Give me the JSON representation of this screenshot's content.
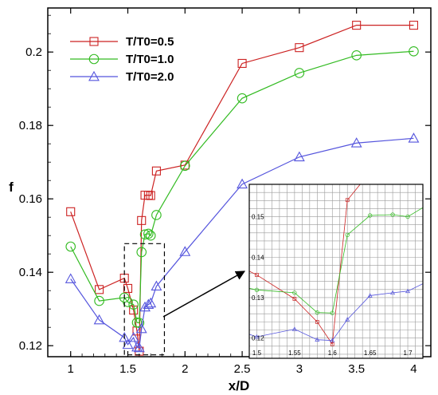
{
  "chart_data": {
    "type": "line",
    "xlabel": "x/D",
    "ylabel": "f",
    "xlim": [
      0.8,
      4.15
    ],
    "ylim": [
      0.117,
      0.212
    ],
    "xticks": [
      "1",
      "1.5",
      "2",
      "2.5",
      "3",
      "3.5",
      "4"
    ],
    "yticks": [
      "0.12",
      "0.14",
      "0.16",
      "0.18",
      "0.2"
    ],
    "legend_position": "top-left",
    "series": [
      {
        "name": "T/T0=0.5",
        "color": "#cc2222",
        "marker": "square",
        "x": [
          1.0,
          1.25,
          1.47,
          1.5,
          1.55,
          1.58,
          1.6,
          1.62,
          1.65,
          1.68,
          1.7,
          1.75,
          2.0,
          2.5,
          3.0,
          3.5,
          4.0
        ],
        "y": [
          0.1565,
          0.1353,
          0.1384,
          0.1356,
          0.1297,
          0.124,
          0.1185,
          0.1541,
          0.161,
          0.161,
          0.1609,
          0.1676,
          0.1692,
          0.1969,
          0.2012,
          0.2073,
          0.2073
        ]
      },
      {
        "name": "T/T0=1.0",
        "color": "#33bb22",
        "marker": "circle",
        "x": [
          1.0,
          1.25,
          1.47,
          1.5,
          1.55,
          1.58,
          1.6,
          1.62,
          1.65,
          1.68,
          1.7,
          1.75,
          2.0,
          2.5,
          3.0,
          3.5,
          4.0
        ],
        "y": [
          0.147,
          0.1322,
          0.1331,
          0.1319,
          0.1312,
          0.1263,
          0.1262,
          0.1455,
          0.1503,
          0.1505,
          0.15,
          0.1556,
          0.169,
          0.1874,
          0.1943,
          0.1991,
          0.2002
        ]
      },
      {
        "name": "T/T0=2.0",
        "color": "#5555dd",
        "marker": "triangle",
        "x": [
          1.0,
          1.25,
          1.47,
          1.5,
          1.55,
          1.58,
          1.6,
          1.62,
          1.65,
          1.68,
          1.7,
          1.75,
          2.0,
          2.5,
          3.0,
          3.5,
          4.0
        ],
        "y": [
          0.1382,
          0.127,
          0.1222,
          0.1203,
          0.1222,
          0.1196,
          0.1194,
          0.1246,
          0.1305,
          0.1312,
          0.1316,
          0.1362,
          0.1456,
          0.164,
          0.1714,
          0.1752,
          0.1765
        ]
      }
    ],
    "highlight_box": {
      "x": [
        1.47,
        1.82
      ],
      "y": [
        0.1175,
        0.1478
      ]
    },
    "inset": {
      "xlim": [
        1.49,
        1.72
      ],
      "ylim": [
        0.115,
        0.158
      ],
      "xticks": [
        "1.5",
        "1.55",
        "1.6",
        "1.65",
        "1.7"
      ],
      "yticks": [
        "0.12",
        "0.13",
        "0.14",
        "0.15"
      ],
      "grid": true
    }
  }
}
